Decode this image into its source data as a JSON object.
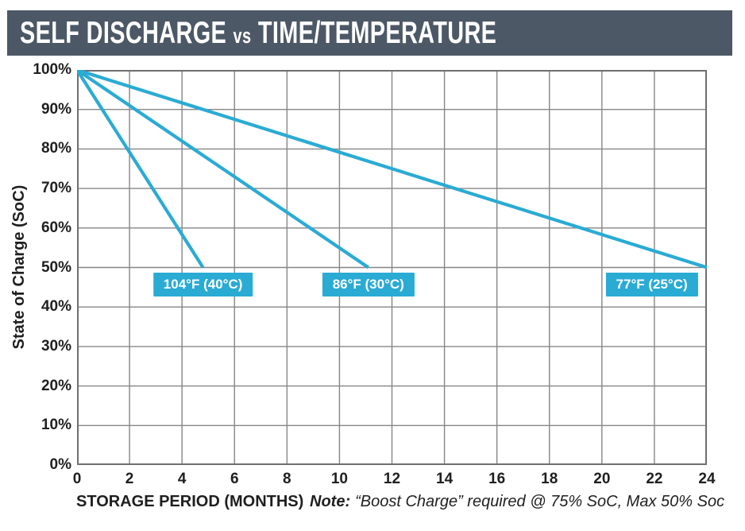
{
  "banner": {
    "title_main": "SELF DISCHARGE",
    "title_vs": "vs",
    "title_rest": "TIME/TEMPERATURE",
    "bg_color": "#4D5866",
    "text_color": "#FFFFFF"
  },
  "chart_data": {
    "type": "line",
    "title": "SELF DISCHARGE vs TIME/TEMPERATURE",
    "xlabel": "STORAGE PERIOD (MONTHS)",
    "ylabel": "State of Charge (SoC)",
    "xlim": [
      0,
      24
    ],
    "ylim": [
      0,
      100
    ],
    "grid": true,
    "legend_position": "inline-labels",
    "line_color": "#2AABD4",
    "grid_color": "#868686",
    "border_color": "#6F6F6F",
    "x_ticks": [
      {
        "v": 0,
        "label": "0"
      },
      {
        "v": 2,
        "label": "2"
      },
      {
        "v": 4,
        "label": "4"
      },
      {
        "v": 6,
        "label": "6"
      },
      {
        "v": 8,
        "label": "8"
      },
      {
        "v": 10,
        "label": "10"
      },
      {
        "v": 12,
        "label": "12"
      },
      {
        "v": 14,
        "label": "14"
      },
      {
        "v": 16,
        "label": "16"
      },
      {
        "v": 18,
        "label": "18"
      },
      {
        "v": 20,
        "label": "20"
      },
      {
        "v": 22,
        "label": "22"
      },
      {
        "v": 24,
        "label": "24"
      }
    ],
    "y_ticks": [
      {
        "v": 100,
        "label": "100%"
      },
      {
        "v": 90,
        "label": "90%"
      },
      {
        "v": 80,
        "label": "80%"
      },
      {
        "v": 70,
        "label": "70%"
      },
      {
        "v": 60,
        "label": "60%"
      },
      {
        "v": 50,
        "label": "50%"
      },
      {
        "v": 40,
        "label": "40%"
      },
      {
        "v": 30,
        "label": "30%"
      },
      {
        "v": 20,
        "label": "20%"
      },
      {
        "v": 10,
        "label": "10%"
      },
      {
        "v": 0,
        "label": "0%"
      }
    ],
    "series": [
      {
        "name": "104°F (40°C)",
        "points": [
          [
            0,
            100
          ],
          [
            4.8,
            50
          ]
        ],
        "label_pos": [
          4.8,
          45.6
        ]
      },
      {
        "name": "86°F (30°C)",
        "points": [
          [
            0,
            100
          ],
          [
            11.1,
            50
          ]
        ],
        "label_pos": [
          11.1,
          45.6
        ]
      },
      {
        "name": "77°F (25°C)",
        "points": [
          [
            0,
            100
          ],
          [
            24,
            50
          ]
        ],
        "label_pos": [
          21.9,
          45.6
        ]
      }
    ],
    "note": {
      "prefix": "Note:",
      "text": "“Boost Charge” required @ 75% SoC, Max 50% Soc"
    }
  }
}
